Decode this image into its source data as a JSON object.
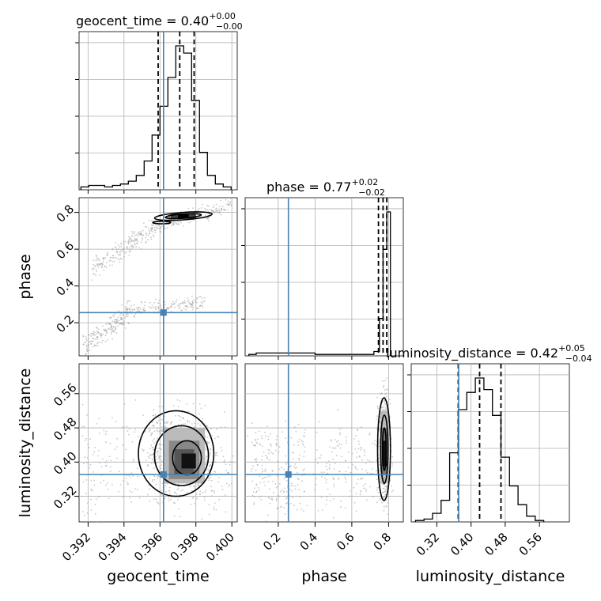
{
  "chart_data": {
    "type": "corner",
    "parameters": [
      "geocent_time",
      "phase",
      "luminosity_distance"
    ],
    "truth_color": "#4682b4",
    "titles": [
      {
        "name": "geocent_time",
        "median": "0.40",
        "plus": "+0.00",
        "minus": "−0.00"
      },
      {
        "name": "phase",
        "median": "0.77",
        "plus": "+0.02",
        "minus": "−0.02"
      },
      {
        "name": "luminosity_distance",
        "median": "0.42",
        "plus": "+0.05",
        "minus": "−0.04"
      }
    ],
    "axes": {
      "geocent_time": {
        "range": [
          0.3915,
          0.4003
        ],
        "ticks": [
          0.392,
          0.394,
          0.396,
          0.398,
          0.4
        ],
        "tick_labels": [
          "0.392",
          "0.394",
          "0.396",
          "0.398",
          "0.400"
        ]
      },
      "phase": {
        "range": [
          0.02,
          0.88
        ],
        "ticks": [
          0.2,
          0.4,
          0.6,
          0.8
        ],
        "tick_labels": [
          "0.2",
          "0.4",
          "0.6",
          "0.8"
        ]
      },
      "luminosity_distance": {
        "range": [
          0.26,
          0.63
        ],
        "ticks": [
          0.32,
          0.4,
          0.48,
          0.56
        ],
        "tick_labels": [
          "0.32",
          "0.40",
          "0.48",
          "0.56"
        ]
      }
    },
    "truths": {
      "geocent_time": 0.3962,
      "phase": 0.255,
      "luminosity_distance": 0.371
    },
    "quantiles": {
      "geocent_time": [
        0.3959,
        0.3971,
        0.3979
      ],
      "phase": [
        0.745,
        0.77,
        0.79
      ],
      "luminosity_distance": [
        0.37,
        0.42,
        0.47
      ]
    },
    "histograms": {
      "geocent_time": {
        "edges": [
          0.3916,
          0.39204,
          0.39248,
          0.39292,
          0.39336,
          0.3938,
          0.39424,
          0.39468,
          0.39512,
          0.39556,
          0.396,
          0.39644,
          0.39688,
          0.39732,
          0.39776,
          0.3982,
          0.39864,
          0.39908,
          0.39952,
          0.39996
        ],
        "counts": [
          2,
          3,
          3,
          2,
          3,
          4,
          6,
          10,
          20,
          38,
          58,
          78,
          100,
          95,
          62,
          26,
          10,
          4,
          2
        ]
      },
      "phase": {
        "edges": [
          0.04,
          0.08,
          0.12,
          0.16,
          0.2,
          0.24,
          0.28,
          0.32,
          0.36,
          0.4,
          0.44,
          0.48,
          0.52,
          0.56,
          0.6,
          0.64,
          0.68,
          0.72,
          0.75,
          0.77,
          0.79,
          0.81
        ],
        "counts": [
          1,
          2,
          2,
          2,
          2,
          2,
          2,
          2,
          2,
          1,
          1,
          1,
          1,
          1,
          1,
          1,
          1,
          3,
          26,
          74,
          100
        ]
      },
      "luminosity_distance": {
        "edges": [
          0.27,
          0.29,
          0.31,
          0.33,
          0.35,
          0.37,
          0.39,
          0.41,
          0.43,
          0.45,
          0.47,
          0.49,
          0.51,
          0.53,
          0.55,
          0.57
        ],
        "counts": [
          1,
          2,
          6,
          15,
          48,
          78,
          90,
          100,
          92,
          74,
          45,
          25,
          12,
          4,
          1
        ]
      }
    },
    "clusters": {
      "geocent_time|phase": [
        {
          "x": [
            0.3917,
            0.3944
          ],
          "y": [
            0.06,
            0.27
          ],
          "spread_y": 0.03,
          "n": 200
        },
        {
          "x": [
            0.3944,
            0.3985
          ],
          "y": [
            0.27,
            0.31
          ],
          "spread_y": 0.02,
          "n": 150
        },
        {
          "x": [
            0.3922,
            0.3957
          ],
          "y": [
            0.48,
            0.72
          ],
          "spread_y": 0.03,
          "n": 200
        },
        {
          "x": [
            0.3957,
            0.4
          ],
          "y": [
            0.72,
            0.84
          ],
          "spread_y": 0.02,
          "n": 160
        },
        {
          "x": [
            0.3965,
            0.398
          ],
          "y": [
            0.77,
            0.79
          ],
          "spread_y": 0.01,
          "n": 180
        }
      ],
      "geocent_time|luminosity_distance": [
        {
          "x": [
            0.3916,
            0.4
          ],
          "y": [
            0.3,
            0.48
          ],
          "spread_y": 0.03,
          "n": 300
        },
        {
          "x": [
            0.3955,
            0.3988
          ],
          "y": [
            0.34,
            0.5
          ],
          "spread_y": 0.03,
          "n": 500
        }
      ],
      "phase|luminosity_distance": [
        {
          "x": [
            0.05,
            0.35
          ],
          "y": [
            0.3,
            0.46
          ],
          "spread_y": 0.03,
          "n": 220
        },
        {
          "x": [
            0.4,
            0.72
          ],
          "y": [
            0.32,
            0.46
          ],
          "spread_y": 0.03,
          "n": 150
        },
        {
          "x": [
            0.75,
            0.8
          ],
          "y": [
            0.33,
            0.55
          ],
          "spread_y": 0.03,
          "n": 400
        }
      ]
    }
  }
}
